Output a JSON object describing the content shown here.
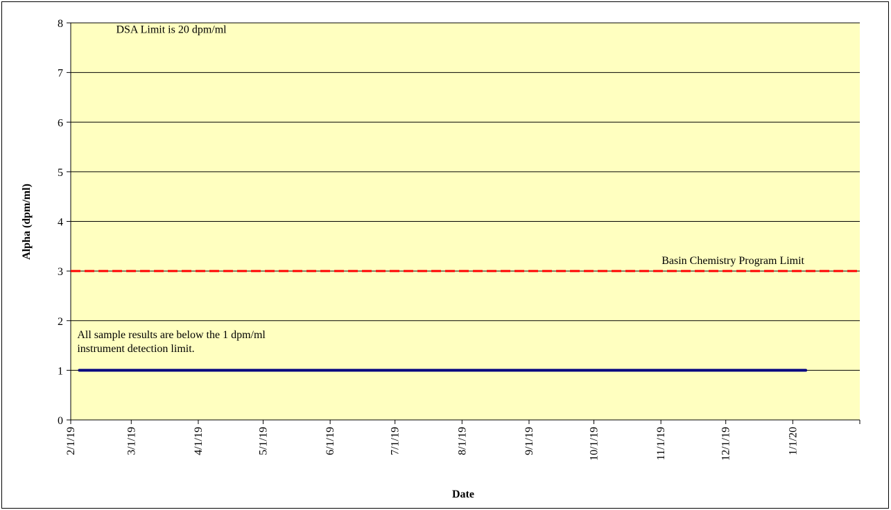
{
  "chart_data": {
    "type": "line",
    "x_label": "Date",
    "y_label": "Alpha  (dpm/ml)",
    "xlim": [
      "2019-02-01",
      "2020-02-01"
    ],
    "xticks": [
      {
        "value": "2019-02-01",
        "label": "2/1/19"
      },
      {
        "value": "2019-03-01",
        "label": "3/1/19"
      },
      {
        "value": "2019-04-01",
        "label": "4/1/19"
      },
      {
        "value": "2019-05-01",
        "label": "5/1/19"
      },
      {
        "value": "2019-06-01",
        "label": "6/1/19"
      },
      {
        "value": "2019-07-01",
        "label": "7/1/19"
      },
      {
        "value": "2019-08-01",
        "label": "8/1/19"
      },
      {
        "value": "2019-09-01",
        "label": "9/1/19"
      },
      {
        "value": "2019-10-01",
        "label": "10/1/19"
      },
      {
        "value": "2019-11-01",
        "label": "11/1/19"
      },
      {
        "value": "2019-12-01",
        "label": "12/1/19"
      },
      {
        "value": "2020-01-01",
        "label": "1/1/20"
      }
    ],
    "ylim": [
      0,
      8
    ],
    "yticks": [
      0,
      1,
      2,
      3,
      4,
      5,
      6,
      7,
      8
    ],
    "grid": true,
    "background": "#ffffc0",
    "series": [
      {
        "color": "#000080",
        "x": [
          "2019-02-05",
          "2020-01-07"
        ],
        "values": [
          1,
          1
        ]
      }
    ],
    "reference_lines": [
      {
        "value": 3,
        "color": "#ff0000",
        "label": "Basin Chemistry  Program  Limit"
      }
    ],
    "annotations": [
      {
        "lines": [
          "DSA Limit  is 20 dpm/ml"
        ],
        "x": "2019-02-22",
        "y": 7.8
      },
      {
        "lines": [
          "All sample  results  are below the 1 dpm/ml",
          "instrument  detection  limit."
        ],
        "x": "2019-02-04",
        "y": 1.65
      }
    ]
  }
}
